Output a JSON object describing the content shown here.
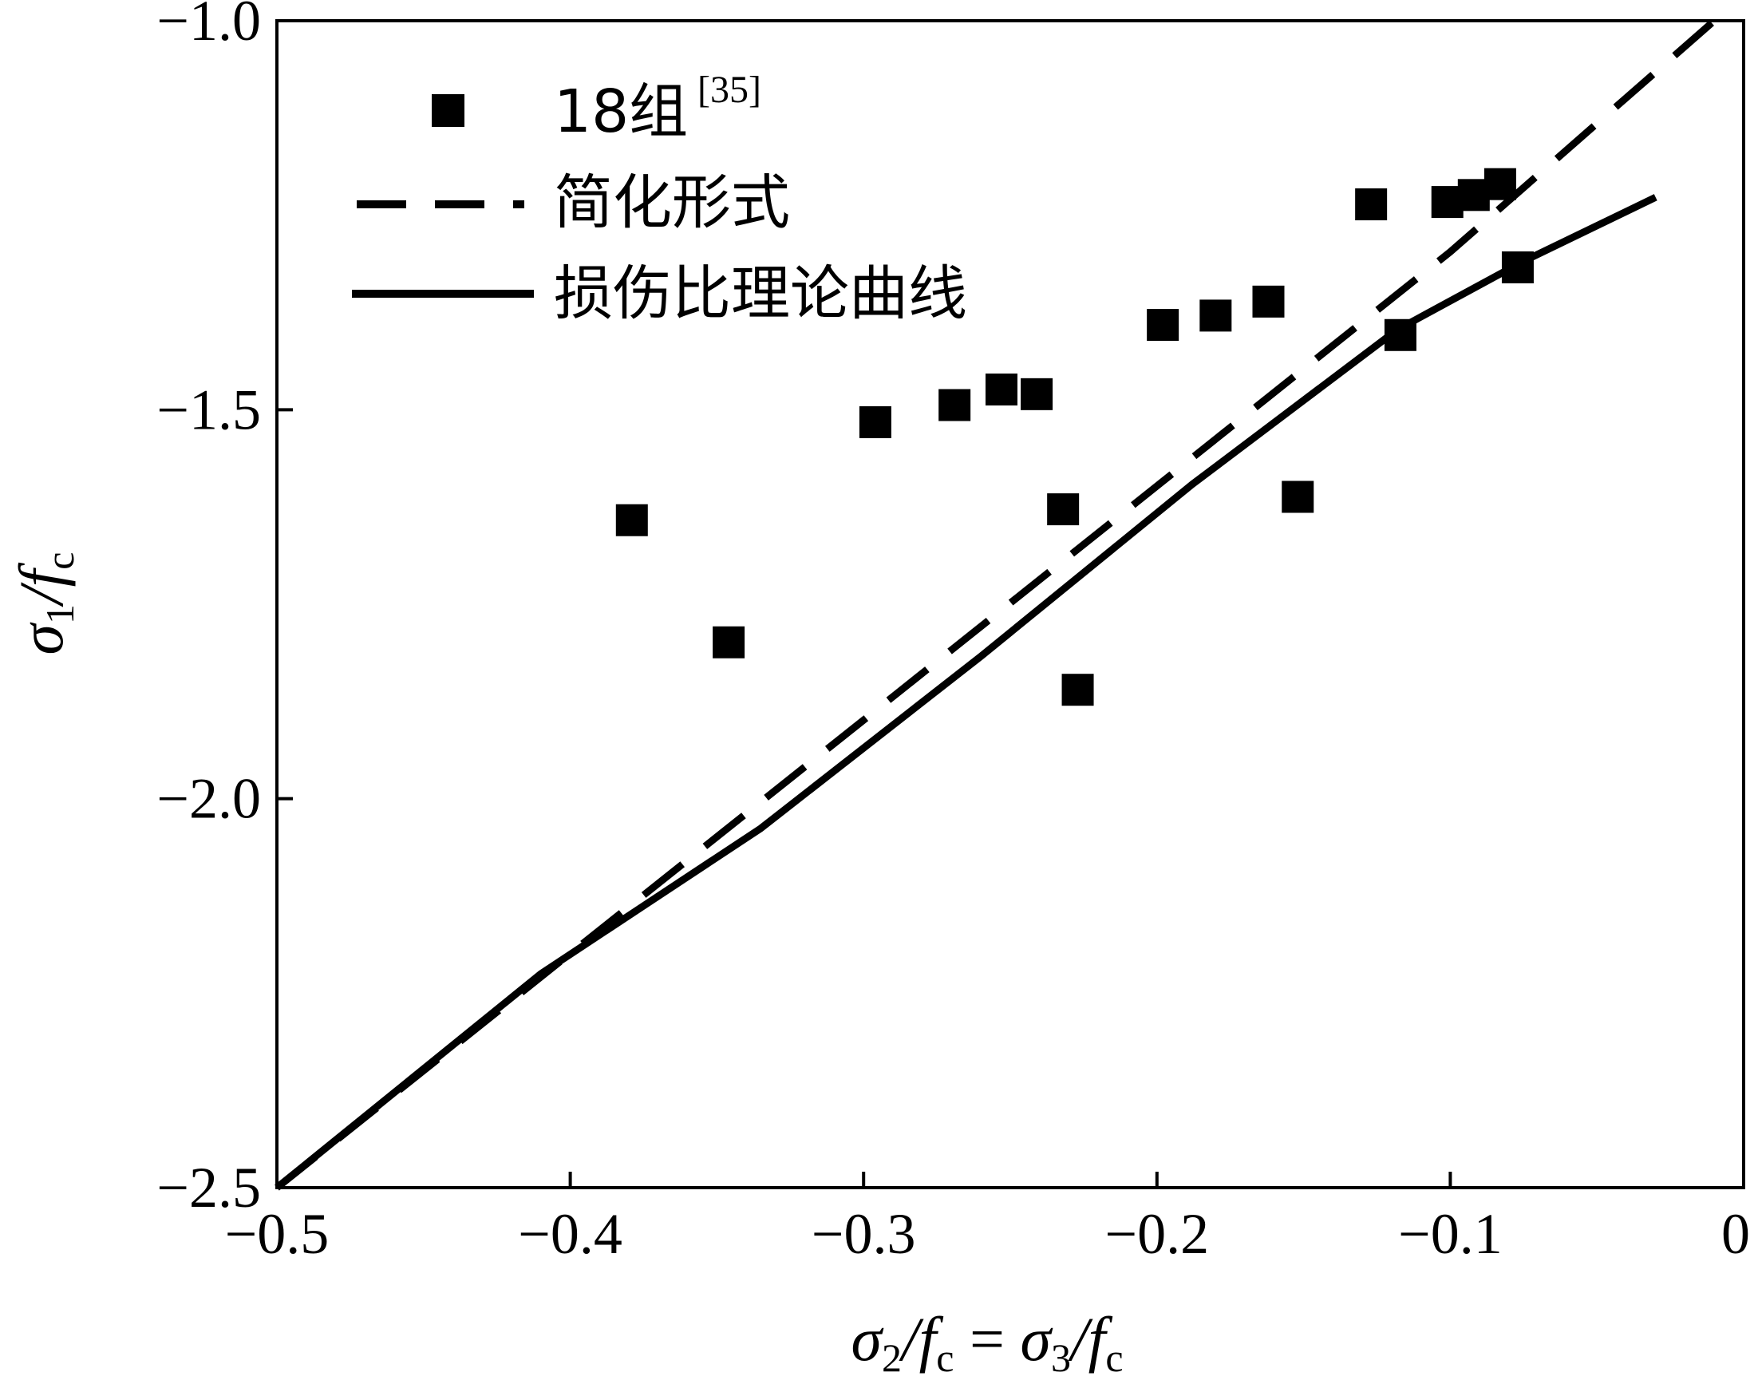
{
  "chart_data": {
    "type": "scatter",
    "xlabel": "σ2/fc = σ3/fc",
    "ylabel": "σ1/fc",
    "xlim": [
      -0.5,
      0
    ],
    "ylim": [
      -2.5,
      -1.0
    ],
    "x_ticks": [
      -0.5,
      -0.4,
      -0.3,
      -0.2,
      -0.1,
      0
    ],
    "x_tick_labels": [
      "−0.5",
      "−0.4",
      "−0.3",
      "−0.2",
      "−0.1",
      "0"
    ],
    "y_ticks": [
      -1.0,
      -1.5,
      -2.0,
      -2.5
    ],
    "y_tick_labels": [
      "−1.0",
      "−1.5",
      "−2.0",
      "−2.5"
    ],
    "legend_position": "top-left",
    "series": [
      {
        "name": "18组",
        "name_superscript": "[35]",
        "kind": "scatter",
        "marker": "square",
        "color": "#000000",
        "points": [
          {
            "x": -0.379,
            "y": -1.642
          },
          {
            "x": -0.346,
            "y": -1.799
          },
          {
            "x": -0.296,
            "y": -1.516
          },
          {
            "x": -0.269,
            "y": -1.494
          },
          {
            "x": -0.253,
            "y": -1.474
          },
          {
            "x": -0.241,
            "y": -1.48
          },
          {
            "x": -0.232,
            "y": -1.628
          },
          {
            "x": -0.227,
            "y": -1.86
          },
          {
            "x": -0.198,
            "y": -1.391
          },
          {
            "x": -0.18,
            "y": -1.379
          },
          {
            "x": -0.162,
            "y": -1.361
          },
          {
            "x": -0.152,
            "y": -1.612
          },
          {
            "x": -0.127,
            "y": -1.236
          },
          {
            "x": -0.117,
            "y": -1.404
          },
          {
            "x": -0.101,
            "y": -1.233
          },
          {
            "x": -0.092,
            "y": -1.224
          },
          {
            "x": -0.083,
            "y": -1.21
          },
          {
            "x": -0.077,
            "y": -1.317
          }
        ]
      },
      {
        "name": "简化形式",
        "kind": "line",
        "dash": "dashed",
        "color": "#000000",
        "points": [
          {
            "x": -0.5,
            "y": -2.5
          },
          {
            "x": -0.4,
            "y": -2.199
          },
          {
            "x": -0.3,
            "y": -1.899
          },
          {
            "x": -0.2,
            "y": -1.598
          },
          {
            "x": -0.1,
            "y": -1.297
          },
          {
            "x": -0.01,
            "y": -1.0
          }
        ]
      },
      {
        "name": "损伤比理论曲线",
        "kind": "line",
        "dash": "solid",
        "color": "#000000",
        "points": [
          {
            "x": -0.5,
            "y": -2.5
          },
          {
            "x": -0.41,
            "y": -2.225
          },
          {
            "x": -0.335,
            "y": -2.038
          },
          {
            "x": -0.26,
            "y": -1.817
          },
          {
            "x": -0.188,
            "y": -1.596
          },
          {
            "x": -0.118,
            "y": -1.397
          },
          {
            "x": -0.075,
            "y": -1.309
          },
          {
            "x": -0.03,
            "y": -1.227
          }
        ]
      }
    ]
  }
}
